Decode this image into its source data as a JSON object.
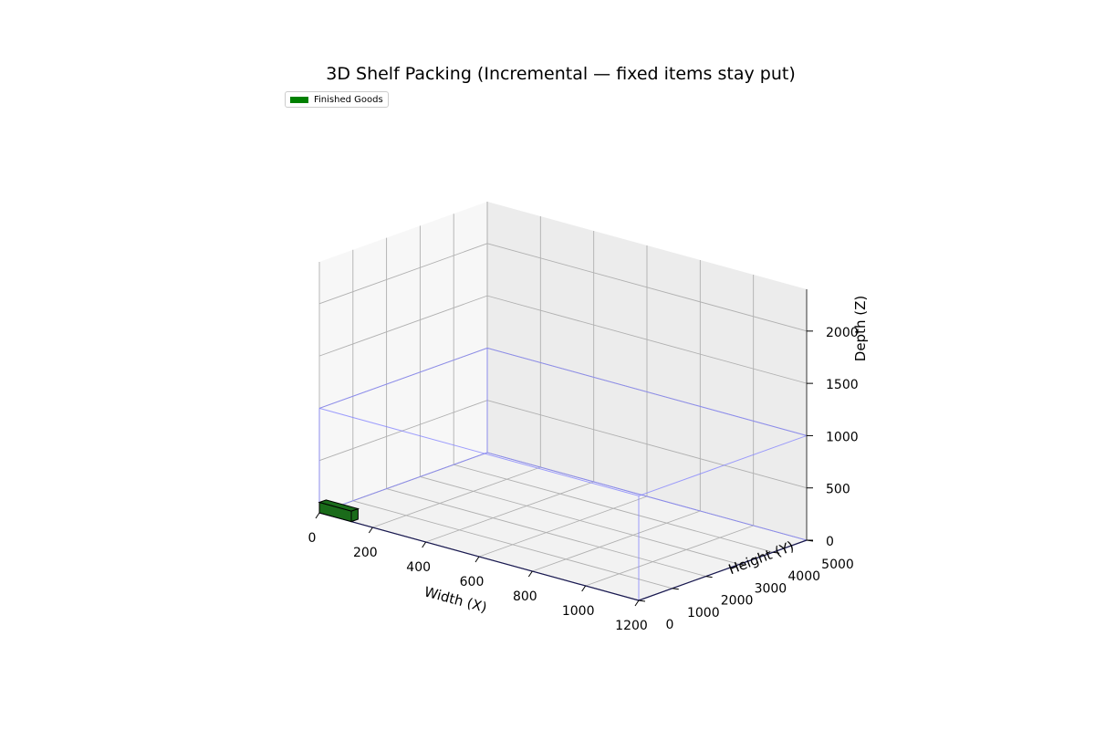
{
  "chart_data": {
    "type": "3d-box",
    "title": "3D Shelf Packing (Incremental — fixed items stay put)",
    "xlabel": "Width (X)",
    "ylabel": "Height (Y)",
    "zlabel": "Depth (Z)",
    "x_ticks": [
      "0",
      "200",
      "400",
      "600",
      "800",
      "1000",
      "1200"
    ],
    "y_ticks": [
      "0",
      "1000",
      "2000",
      "3000",
      "4000",
      "5000"
    ],
    "z_ticks": [
      "0",
      "500",
      "1000",
      "1500",
      "2000"
    ],
    "xlim": [
      0,
      1200
    ],
    "ylim": [
      0,
      5000
    ],
    "zlim": [
      0,
      2400
    ],
    "grid": true,
    "legend_position": "top-left",
    "legend": [
      {
        "label": "Finished Goods",
        "color": "#008000"
      }
    ],
    "container": {
      "width": 1200,
      "height": 5000,
      "depth": 1000,
      "color": "#8080ff"
    },
    "items": [
      {
        "category": "Finished Goods",
        "x": 0,
        "y": 0,
        "z": 0,
        "w": 120,
        "h": 200,
        "d": 100,
        "color": "#1a6b1a"
      }
    ]
  }
}
